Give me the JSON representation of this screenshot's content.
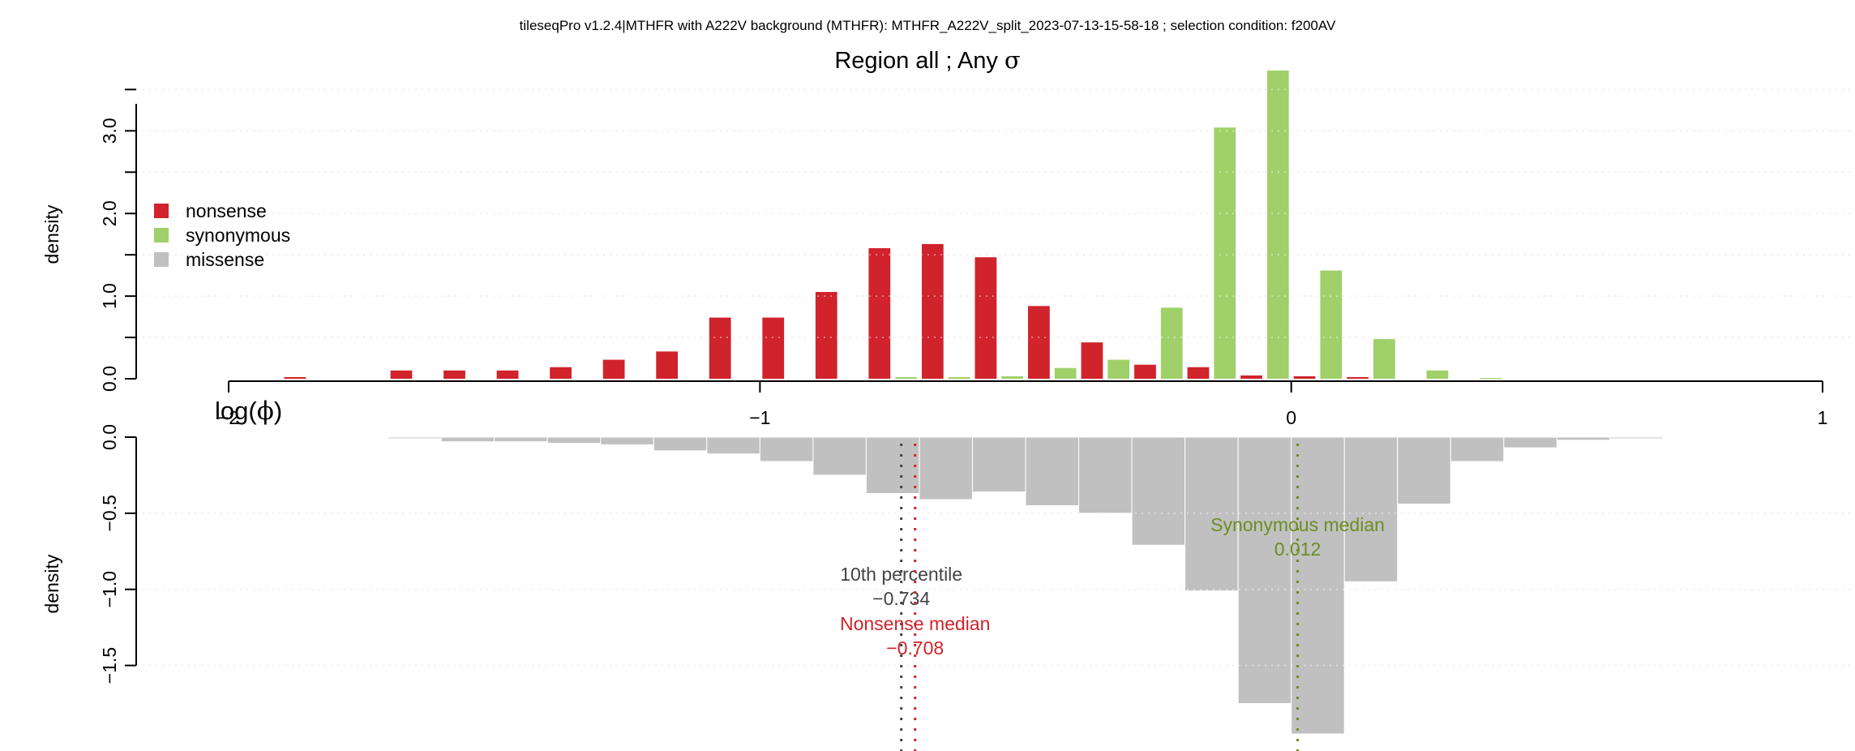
{
  "header": {
    "title": "tileseqPro v1.2.4|MTHFR with A222V background (MTHFR): MTHFR_A222V_split_2023-07-13-15-58-18 ; selection condition: f200AV",
    "subtitle_main": "Region all ; Any ",
    "subtitle_sigma": "σ"
  },
  "chart_data": [
    {
      "type": "bar",
      "panel": "top",
      "ylabel": "density",
      "ylim": [
        0,
        3.7
      ],
      "yticks": [
        0.0,
        1.0,
        2.0,
        3.0
      ],
      "ytick_labels": [
        "0.0",
        "1.0",
        "2.0",
        "3.0"
      ],
      "grid": true,
      "legend_position": "left",
      "legend": [
        {
          "label": "nonsense",
          "color": "#d0232c"
        },
        {
          "label": "synonymous",
          "color": "#a0d06a"
        },
        {
          "label": "missense",
          "color": "#c0c0c0"
        }
      ],
      "bin_width": 0.1,
      "bin_starts": [
        -1.9,
        -1.8,
        -1.7,
        -1.6,
        -1.5,
        -1.4,
        -1.3,
        -1.2,
        -1.1,
        -1.0,
        -0.9,
        -0.8,
        -0.7,
        -0.6,
        -0.5,
        -0.4,
        -0.3,
        -0.2,
        -0.1,
        0.0,
        0.1,
        0.2,
        0.3
      ],
      "series": [
        {
          "name": "nonsense",
          "color": "#d0232c",
          "values": [
            0.02,
            0,
            0.1,
            0.1,
            0.1,
            0.14,
            0.23,
            0.33,
            0.74,
            0.74,
            1.05,
            1.58,
            1.63,
            1.47,
            0.88,
            0.44,
            0.17,
            0.14,
            0.04,
            0.03,
            0.02,
            0,
            0
          ]
        },
        {
          "name": "synonymous",
          "color": "#a0d06a",
          "values": [
            0,
            0,
            0,
            0,
            0,
            0,
            0,
            0,
            0,
            0,
            0,
            0.02,
            0.02,
            0.03,
            0.13,
            0.23,
            0.86,
            3.04,
            3.73,
            1.31,
            0.48,
            0.1,
            0.01
          ]
        }
      ]
    },
    {
      "type": "bar",
      "panel": "bottom",
      "ylabel": "density",
      "ylim": [
        0,
        1.95
      ],
      "yaxis_inverted": true,
      "yticks": [
        0.0,
        0.5,
        1.0,
        1.5
      ],
      "ytick_labels": [
        "0.0",
        "−0.5",
        "−1.0",
        "−1.5"
      ],
      "grid": true,
      "bin_width": 0.1,
      "bin_starts": [
        -1.8,
        -1.7,
        -1.6,
        -1.5,
        -1.4,
        -1.3,
        -1.2,
        -1.1,
        -1.0,
        -0.9,
        -0.8,
        -0.7,
        -0.6,
        -0.5,
        -0.4,
        -0.3,
        -0.2,
        -0.1,
        0.0,
        0.1,
        0.2,
        0.3,
        0.4,
        0.5,
        0.6,
        0.7
      ],
      "series": [
        {
          "name": "missense",
          "color": "#c0c0c0",
          "values": [
            0.005,
            0.01,
            0.03,
            0.03,
            0.04,
            0.05,
            0.09,
            0.11,
            0.16,
            0.25,
            0.37,
            0.41,
            0.36,
            0.45,
            0.5,
            0.71,
            1.01,
            1.75,
            1.95,
            0.95,
            0.44,
            0.16,
            0.07,
            0.02,
            0.01,
            0.005
          ]
        }
      ],
      "annotations": [
        {
          "label": "10th percentile",
          "value_text": "−0.734",
          "x": -0.734,
          "color": "#444444"
        },
        {
          "label": "Nonsense median",
          "value_text": "−0.708",
          "x": -0.708,
          "color": "#d0232c"
        },
        {
          "label": "Synonymous median",
          "value_text": "0.012",
          "x": 0.012,
          "color": "#6b8e23"
        }
      ]
    }
  ],
  "xaxis": {
    "label_text": "log(",
    "label_phi": "ϕ",
    "label_close": ")",
    "xlim": [
      -2,
      1
    ],
    "ticks": [
      -2,
      -1,
      0,
      1
    ],
    "tick_labels": [
      "−2",
      "−1",
      "0",
      "1"
    ]
  }
}
